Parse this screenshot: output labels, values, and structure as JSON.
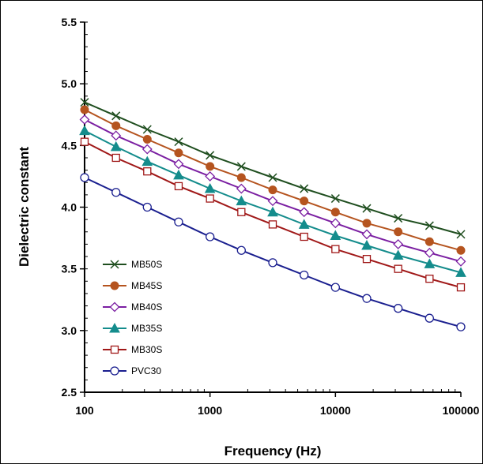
{
  "chart_data": {
    "type": "line",
    "title": "",
    "xlabel": "Frequency (Hz)",
    "ylabel": "Dielectric constant",
    "xscale": "log",
    "xlim": [
      100,
      100000
    ],
    "ylim": [
      2.5,
      5.5
    ],
    "x_ticks": [
      "100",
      "1000",
      "10000",
      "100000"
    ],
    "y_ticks": [
      "2.5",
      "3.0",
      "3.5",
      "4.0",
      "4.5",
      "5.0",
      "5.5"
    ],
    "grid": false,
    "legend_position": "lower-left",
    "x": [
      100,
      178,
      316,
      562,
      1000,
      1778,
      3162,
      5623,
      10000,
      17783,
      31623,
      56234,
      100000
    ],
    "series": [
      {
        "name": "MB50S",
        "color": "#1f4e1f",
        "marker": "x",
        "values": [
          4.85,
          4.74,
          4.63,
          4.53,
          4.42,
          4.33,
          4.24,
          4.15,
          4.07,
          3.99,
          3.91,
          3.85,
          3.78
        ]
      },
      {
        "name": "MB45S",
        "color": "#b5541f",
        "marker": "filled-circle",
        "values": [
          4.79,
          4.66,
          4.55,
          4.44,
          4.33,
          4.24,
          4.14,
          4.05,
          3.96,
          3.87,
          3.8,
          3.72,
          3.65
        ]
      },
      {
        "name": "MB40S",
        "color": "#7b1fa2",
        "marker": "open-diamond",
        "values": [
          4.71,
          4.58,
          4.47,
          4.35,
          4.25,
          4.15,
          4.05,
          3.96,
          3.87,
          3.78,
          3.7,
          3.63,
          3.56
        ]
      },
      {
        "name": "MB35S",
        "color": "#148c8c",
        "marker": "filled-triangle",
        "values": [
          4.62,
          4.49,
          4.37,
          4.26,
          4.15,
          4.05,
          3.96,
          3.86,
          3.77,
          3.69,
          3.61,
          3.54,
          3.47
        ]
      },
      {
        "name": "MB30S",
        "color": "#a01818",
        "marker": "open-square",
        "values": [
          4.53,
          4.4,
          4.29,
          4.17,
          4.07,
          3.96,
          3.86,
          3.76,
          3.66,
          3.58,
          3.5,
          3.42,
          3.35
        ]
      },
      {
        "name": "PVC30",
        "color": "#1a1f8f",
        "marker": "open-circle",
        "values": [
          4.24,
          4.12,
          4.0,
          3.88,
          3.76,
          3.65,
          3.55,
          3.45,
          3.35,
          3.26,
          3.18,
          3.1,
          3.03
        ]
      }
    ]
  }
}
